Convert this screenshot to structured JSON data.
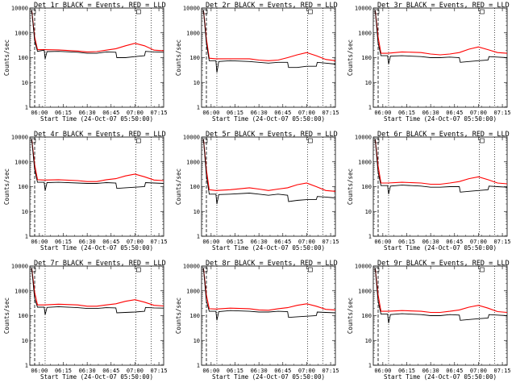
{
  "chart_data": {
    "type": "line",
    "layout": "3x3 grid",
    "xlabel": "Start Time (24-Oct-07 05:50:00)",
    "ylabel": "Counts/sec",
    "yscale": "log",
    "ylim": [
      1,
      10000
    ],
    "yticks": [
      "1",
      "10",
      "100",
      "1000",
      "10000"
    ],
    "xrange_hours": [
      5.9,
      7.3
    ],
    "xticks": [
      {
        "t": 6.0,
        "label": "06:00"
      },
      {
        "t": 6.25,
        "label": "06:15"
      },
      {
        "t": 6.5,
        "label": "06:30"
      },
      {
        "t": 6.75,
        "label": "06:45"
      },
      {
        "t": 7.0,
        "label": "07:00"
      },
      {
        "t": 7.25,
        "label": "07:15"
      }
    ],
    "dotted_markers_hours": [
      6.06,
      7.01,
      7.17
    ],
    "series_colors": {
      "events": "#000000",
      "lld": "#ff0000"
    },
    "panels": [
      {
        "title": "Det 1r BLACK = Events, RED = LLD",
        "events": [
          [
            5.92,
            8000
          ],
          [
            5.95,
            500
          ],
          [
            5.98,
            180
          ],
          [
            6.05,
            200
          ],
          [
            6.06,
            90
          ],
          [
            6.08,
            175
          ],
          [
            6.2,
            180
          ],
          [
            6.4,
            165
          ],
          [
            6.5,
            150
          ],
          [
            6.6,
            150
          ],
          [
            6.7,
            170
          ],
          [
            6.8,
            165
          ],
          [
            6.81,
            100
          ],
          [
            6.9,
            100
          ],
          [
            7.0,
            110
          ],
          [
            7.1,
            120
          ],
          [
            7.11,
            180
          ],
          [
            7.2,
            170
          ],
          [
            7.3,
            165
          ]
        ],
        "lld": [
          [
            5.92,
            8000
          ],
          [
            5.95,
            700
          ],
          [
            5.98,
            210
          ],
          [
            6.05,
            210
          ],
          [
            6.2,
            205
          ],
          [
            6.4,
            185
          ],
          [
            6.5,
            170
          ],
          [
            6.6,
            175
          ],
          [
            6.7,
            200
          ],
          [
            6.8,
            230
          ],
          [
            6.9,
            300
          ],
          [
            7.0,
            380
          ],
          [
            7.1,
            300
          ],
          [
            7.2,
            200
          ],
          [
            7.3,
            190
          ]
        ]
      },
      {
        "title": "Det 2r BLACK = Events, RED = LLD",
        "events": [
          [
            5.92,
            8000
          ],
          [
            5.95,
            400
          ],
          [
            5.98,
            75
          ],
          [
            6.05,
            75
          ],
          [
            6.06,
            25
          ],
          [
            6.08,
            70
          ],
          [
            6.2,
            75
          ],
          [
            6.4,
            70
          ],
          [
            6.5,
            65
          ],
          [
            6.6,
            60
          ],
          [
            6.7,
            65
          ],
          [
            6.8,
            65
          ],
          [
            6.81,
            40
          ],
          [
            6.9,
            40
          ],
          [
            7.0,
            45
          ],
          [
            7.1,
            45
          ],
          [
            7.11,
            65
          ],
          [
            7.2,
            60
          ],
          [
            7.3,
            55
          ]
        ],
        "lld": [
          [
            5.92,
            8000
          ],
          [
            5.95,
            600
          ],
          [
            5.98,
            95
          ],
          [
            6.05,
            90
          ],
          [
            6.2,
            90
          ],
          [
            6.4,
            90
          ],
          [
            6.5,
            80
          ],
          [
            6.6,
            75
          ],
          [
            6.7,
            80
          ],
          [
            6.8,
            100
          ],
          [
            6.9,
            130
          ],
          [
            7.0,
            160
          ],
          [
            7.1,
            120
          ],
          [
            7.2,
            85
          ],
          [
            7.3,
            75
          ]
        ]
      },
      {
        "title": "Det 3r BLACK = Events, RED = LLD",
        "events": [
          [
            5.92,
            8000
          ],
          [
            5.95,
            400
          ],
          [
            5.98,
            120
          ],
          [
            6.05,
            120
          ],
          [
            6.06,
            55
          ],
          [
            6.08,
            115
          ],
          [
            6.2,
            120
          ],
          [
            6.4,
            110
          ],
          [
            6.5,
            100
          ],
          [
            6.6,
            100
          ],
          [
            6.7,
            105
          ],
          [
            6.8,
            100
          ],
          [
            6.81,
            65
          ],
          [
            6.9,
            70
          ],
          [
            7.0,
            75
          ],
          [
            7.1,
            80
          ],
          [
            7.11,
            110
          ],
          [
            7.2,
            105
          ],
          [
            7.3,
            100
          ]
        ],
        "lld": [
          [
            5.92,
            8000
          ],
          [
            5.95,
            700
          ],
          [
            5.98,
            150
          ],
          [
            6.05,
            150
          ],
          [
            6.2,
            170
          ],
          [
            6.4,
            160
          ],
          [
            6.5,
            140
          ],
          [
            6.6,
            130
          ],
          [
            6.7,
            140
          ],
          [
            6.8,
            160
          ],
          [
            6.9,
            220
          ],
          [
            7.0,
            270
          ],
          [
            7.1,
            210
          ],
          [
            7.2,
            160
          ],
          [
            7.3,
            150
          ]
        ]
      },
      {
        "title": "Det 4r BLACK = Events, RED = LLD",
        "events": [
          [
            5.92,
            8000
          ],
          [
            5.95,
            500
          ],
          [
            5.98,
            150
          ],
          [
            6.05,
            150
          ],
          [
            6.06,
            70
          ],
          [
            6.08,
            145
          ],
          [
            6.2,
            150
          ],
          [
            6.4,
            140
          ],
          [
            6.5,
            135
          ],
          [
            6.6,
            135
          ],
          [
            6.7,
            145
          ],
          [
            6.8,
            140
          ],
          [
            6.81,
            85
          ],
          [
            6.9,
            90
          ],
          [
            7.0,
            95
          ],
          [
            7.1,
            100
          ],
          [
            7.11,
            145
          ],
          [
            7.2,
            140
          ],
          [
            7.3,
            135
          ]
        ],
        "lld": [
          [
            5.92,
            8000
          ],
          [
            5.95,
            800
          ],
          [
            5.98,
            190
          ],
          [
            6.05,
            185
          ],
          [
            6.2,
            190
          ],
          [
            6.4,
            175
          ],
          [
            6.5,
            160
          ],
          [
            6.6,
            160
          ],
          [
            6.7,
            190
          ],
          [
            6.8,
            210
          ],
          [
            6.9,
            270
          ],
          [
            7.0,
            320
          ],
          [
            7.1,
            250
          ],
          [
            7.2,
            185
          ],
          [
            7.3,
            175
          ]
        ]
      },
      {
        "title": "Det 5r BLACK = Events, RED = LLD",
        "events": [
          [
            5.92,
            8000
          ],
          [
            5.95,
            300
          ],
          [
            5.98,
            50
          ],
          [
            6.05,
            50
          ],
          [
            6.06,
            20
          ],
          [
            6.08,
            48
          ],
          [
            6.2,
            50
          ],
          [
            6.4,
            55
          ],
          [
            6.5,
            50
          ],
          [
            6.6,
            45
          ],
          [
            6.7,
            50
          ],
          [
            6.8,
            45
          ],
          [
            6.81,
            25
          ],
          [
            6.9,
            28
          ],
          [
            7.0,
            30
          ],
          [
            7.1,
            30
          ],
          [
            7.11,
            40
          ],
          [
            7.2,
            38
          ],
          [
            7.3,
            35
          ]
        ],
        "lld": [
          [
            5.92,
            8000
          ],
          [
            5.95,
            500
          ],
          [
            5.98,
            75
          ],
          [
            6.05,
            70
          ],
          [
            6.2,
            75
          ],
          [
            6.4,
            90
          ],
          [
            6.5,
            80
          ],
          [
            6.6,
            70
          ],
          [
            6.7,
            80
          ],
          [
            6.8,
            90
          ],
          [
            6.9,
            120
          ],
          [
            7.0,
            140
          ],
          [
            7.1,
            100
          ],
          [
            7.2,
            70
          ],
          [
            7.3,
            65
          ]
        ]
      },
      {
        "title": "Det 6r BLACK = Events, RED = LLD",
        "events": [
          [
            5.92,
            8000
          ],
          [
            5.95,
            400
          ],
          [
            5.98,
            110
          ],
          [
            6.05,
            110
          ],
          [
            6.06,
            50
          ],
          [
            6.08,
            105
          ],
          [
            6.2,
            115
          ],
          [
            6.4,
            105
          ],
          [
            6.5,
            95
          ],
          [
            6.6,
            95
          ],
          [
            6.7,
            100
          ],
          [
            6.8,
            100
          ],
          [
            6.81,
            60
          ],
          [
            6.9,
            65
          ],
          [
            7.0,
            70
          ],
          [
            7.1,
            75
          ],
          [
            7.11,
            105
          ],
          [
            7.2,
            100
          ],
          [
            7.3,
            95
          ]
        ],
        "lld": [
          [
            5.92,
            8000
          ],
          [
            5.95,
            700
          ],
          [
            5.98,
            140
          ],
          [
            6.05,
            140
          ],
          [
            6.2,
            150
          ],
          [
            6.4,
            140
          ],
          [
            6.5,
            125
          ],
          [
            6.6,
            125
          ],
          [
            6.7,
            140
          ],
          [
            6.8,
            160
          ],
          [
            6.9,
            210
          ],
          [
            7.0,
            250
          ],
          [
            7.1,
            190
          ],
          [
            7.2,
            140
          ],
          [
            7.3,
            130
          ]
        ]
      },
      {
        "title": "Det 7r BLACK = Events, RED = LLD",
        "events": [
          [
            5.92,
            8000
          ],
          [
            5.95,
            500
          ],
          [
            5.98,
            220
          ],
          [
            6.05,
            220
          ],
          [
            6.06,
            110
          ],
          [
            6.08,
            215
          ],
          [
            6.2,
            230
          ],
          [
            6.4,
            210
          ],
          [
            6.5,
            195
          ],
          [
            6.6,
            195
          ],
          [
            6.7,
            210
          ],
          [
            6.8,
            205
          ],
          [
            6.81,
            130
          ],
          [
            6.9,
            135
          ],
          [
            7.0,
            140
          ],
          [
            7.1,
            150
          ],
          [
            7.11,
            215
          ],
          [
            7.2,
            205
          ],
          [
            7.3,
            200
          ]
        ],
        "lld": [
          [
            5.92,
            8000
          ],
          [
            5.95,
            900
          ],
          [
            5.98,
            270
          ],
          [
            6.05,
            270
          ],
          [
            6.2,
            290
          ],
          [
            6.4,
            270
          ],
          [
            6.5,
            240
          ],
          [
            6.6,
            240
          ],
          [
            6.7,
            270
          ],
          [
            6.8,
            300
          ],
          [
            6.9,
            380
          ],
          [
            7.0,
            440
          ],
          [
            7.1,
            350
          ],
          [
            7.2,
            260
          ],
          [
            7.3,
            245
          ]
        ]
      },
      {
        "title": "Det 8r BLACK = Events, RED = LLD",
        "events": [
          [
            5.92,
            8000
          ],
          [
            5.95,
            400
          ],
          [
            5.98,
            150
          ],
          [
            6.05,
            150
          ],
          [
            6.06,
            65
          ],
          [
            6.08,
            145
          ],
          [
            6.2,
            160
          ],
          [
            6.4,
            150
          ],
          [
            6.5,
            140
          ],
          [
            6.6,
            140
          ],
          [
            6.7,
            150
          ],
          [
            6.8,
            145
          ],
          [
            6.81,
            85
          ],
          [
            6.9,
            90
          ],
          [
            7.0,
            95
          ],
          [
            7.1,
            100
          ],
          [
            7.11,
            140
          ],
          [
            7.2,
            135
          ],
          [
            7.3,
            130
          ]
        ],
        "lld": [
          [
            5.92,
            8000
          ],
          [
            5.95,
            700
          ],
          [
            5.98,
            190
          ],
          [
            6.05,
            185
          ],
          [
            6.2,
            200
          ],
          [
            6.4,
            190
          ],
          [
            6.5,
            170
          ],
          [
            6.6,
            165
          ],
          [
            6.7,
            190
          ],
          [
            6.8,
            210
          ],
          [
            6.9,
            260
          ],
          [
            7.0,
            300
          ],
          [
            7.1,
            240
          ],
          [
            7.2,
            180
          ],
          [
            7.3,
            170
          ]
        ]
      },
      {
        "title": "Det 9r BLACK = Events, RED = LLD",
        "events": [
          [
            5.92,
            8000
          ],
          [
            5.95,
            400
          ],
          [
            5.98,
            115
          ],
          [
            6.05,
            115
          ],
          [
            6.06,
            50
          ],
          [
            6.08,
            110
          ],
          [
            6.2,
            120
          ],
          [
            6.4,
            110
          ],
          [
            6.5,
            100
          ],
          [
            6.6,
            100
          ],
          [
            6.7,
            110
          ],
          [
            6.8,
            105
          ],
          [
            6.81,
            65
          ],
          [
            6.9,
            70
          ],
          [
            7.0,
            75
          ],
          [
            7.1,
            80
          ],
          [
            7.11,
            110
          ],
          [
            7.2,
            105
          ],
          [
            7.3,
            100
          ]
        ],
        "lld": [
          [
            5.92,
            8000
          ],
          [
            5.95,
            700
          ],
          [
            5.98,
            150
          ],
          [
            6.05,
            150
          ],
          [
            6.2,
            160
          ],
          [
            6.4,
            150
          ],
          [
            6.5,
            135
          ],
          [
            6.6,
            135
          ],
          [
            6.7,
            150
          ],
          [
            6.8,
            170
          ],
          [
            6.9,
            220
          ],
          [
            7.0,
            260
          ],
          [
            7.1,
            200
          ],
          [
            7.2,
            145
          ],
          [
            7.3,
            135
          ]
        ]
      }
    ]
  }
}
